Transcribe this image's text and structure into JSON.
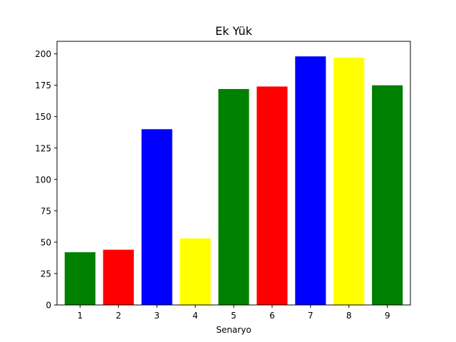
{
  "chart_data": {
    "type": "bar",
    "title": "Ek Yük",
    "xlabel": "Senaryo",
    "ylabel": "",
    "categories": [
      "1",
      "2",
      "3",
      "4",
      "5",
      "6",
      "7",
      "8",
      "9"
    ],
    "values": [
      42,
      44,
      140,
      53,
      172,
      174,
      198,
      197,
      175
    ],
    "colors": [
      "#008000",
      "#ff0000",
      "#0000ff",
      "#ffff00",
      "#008000",
      "#ff0000",
      "#0000ff",
      "#ffff00",
      "#008000"
    ],
    "ylim": [
      0,
      210
    ],
    "yticks": [
      0,
      25,
      50,
      75,
      100,
      125,
      150,
      175,
      200
    ],
    "grid": false,
    "legend": "none"
  }
}
